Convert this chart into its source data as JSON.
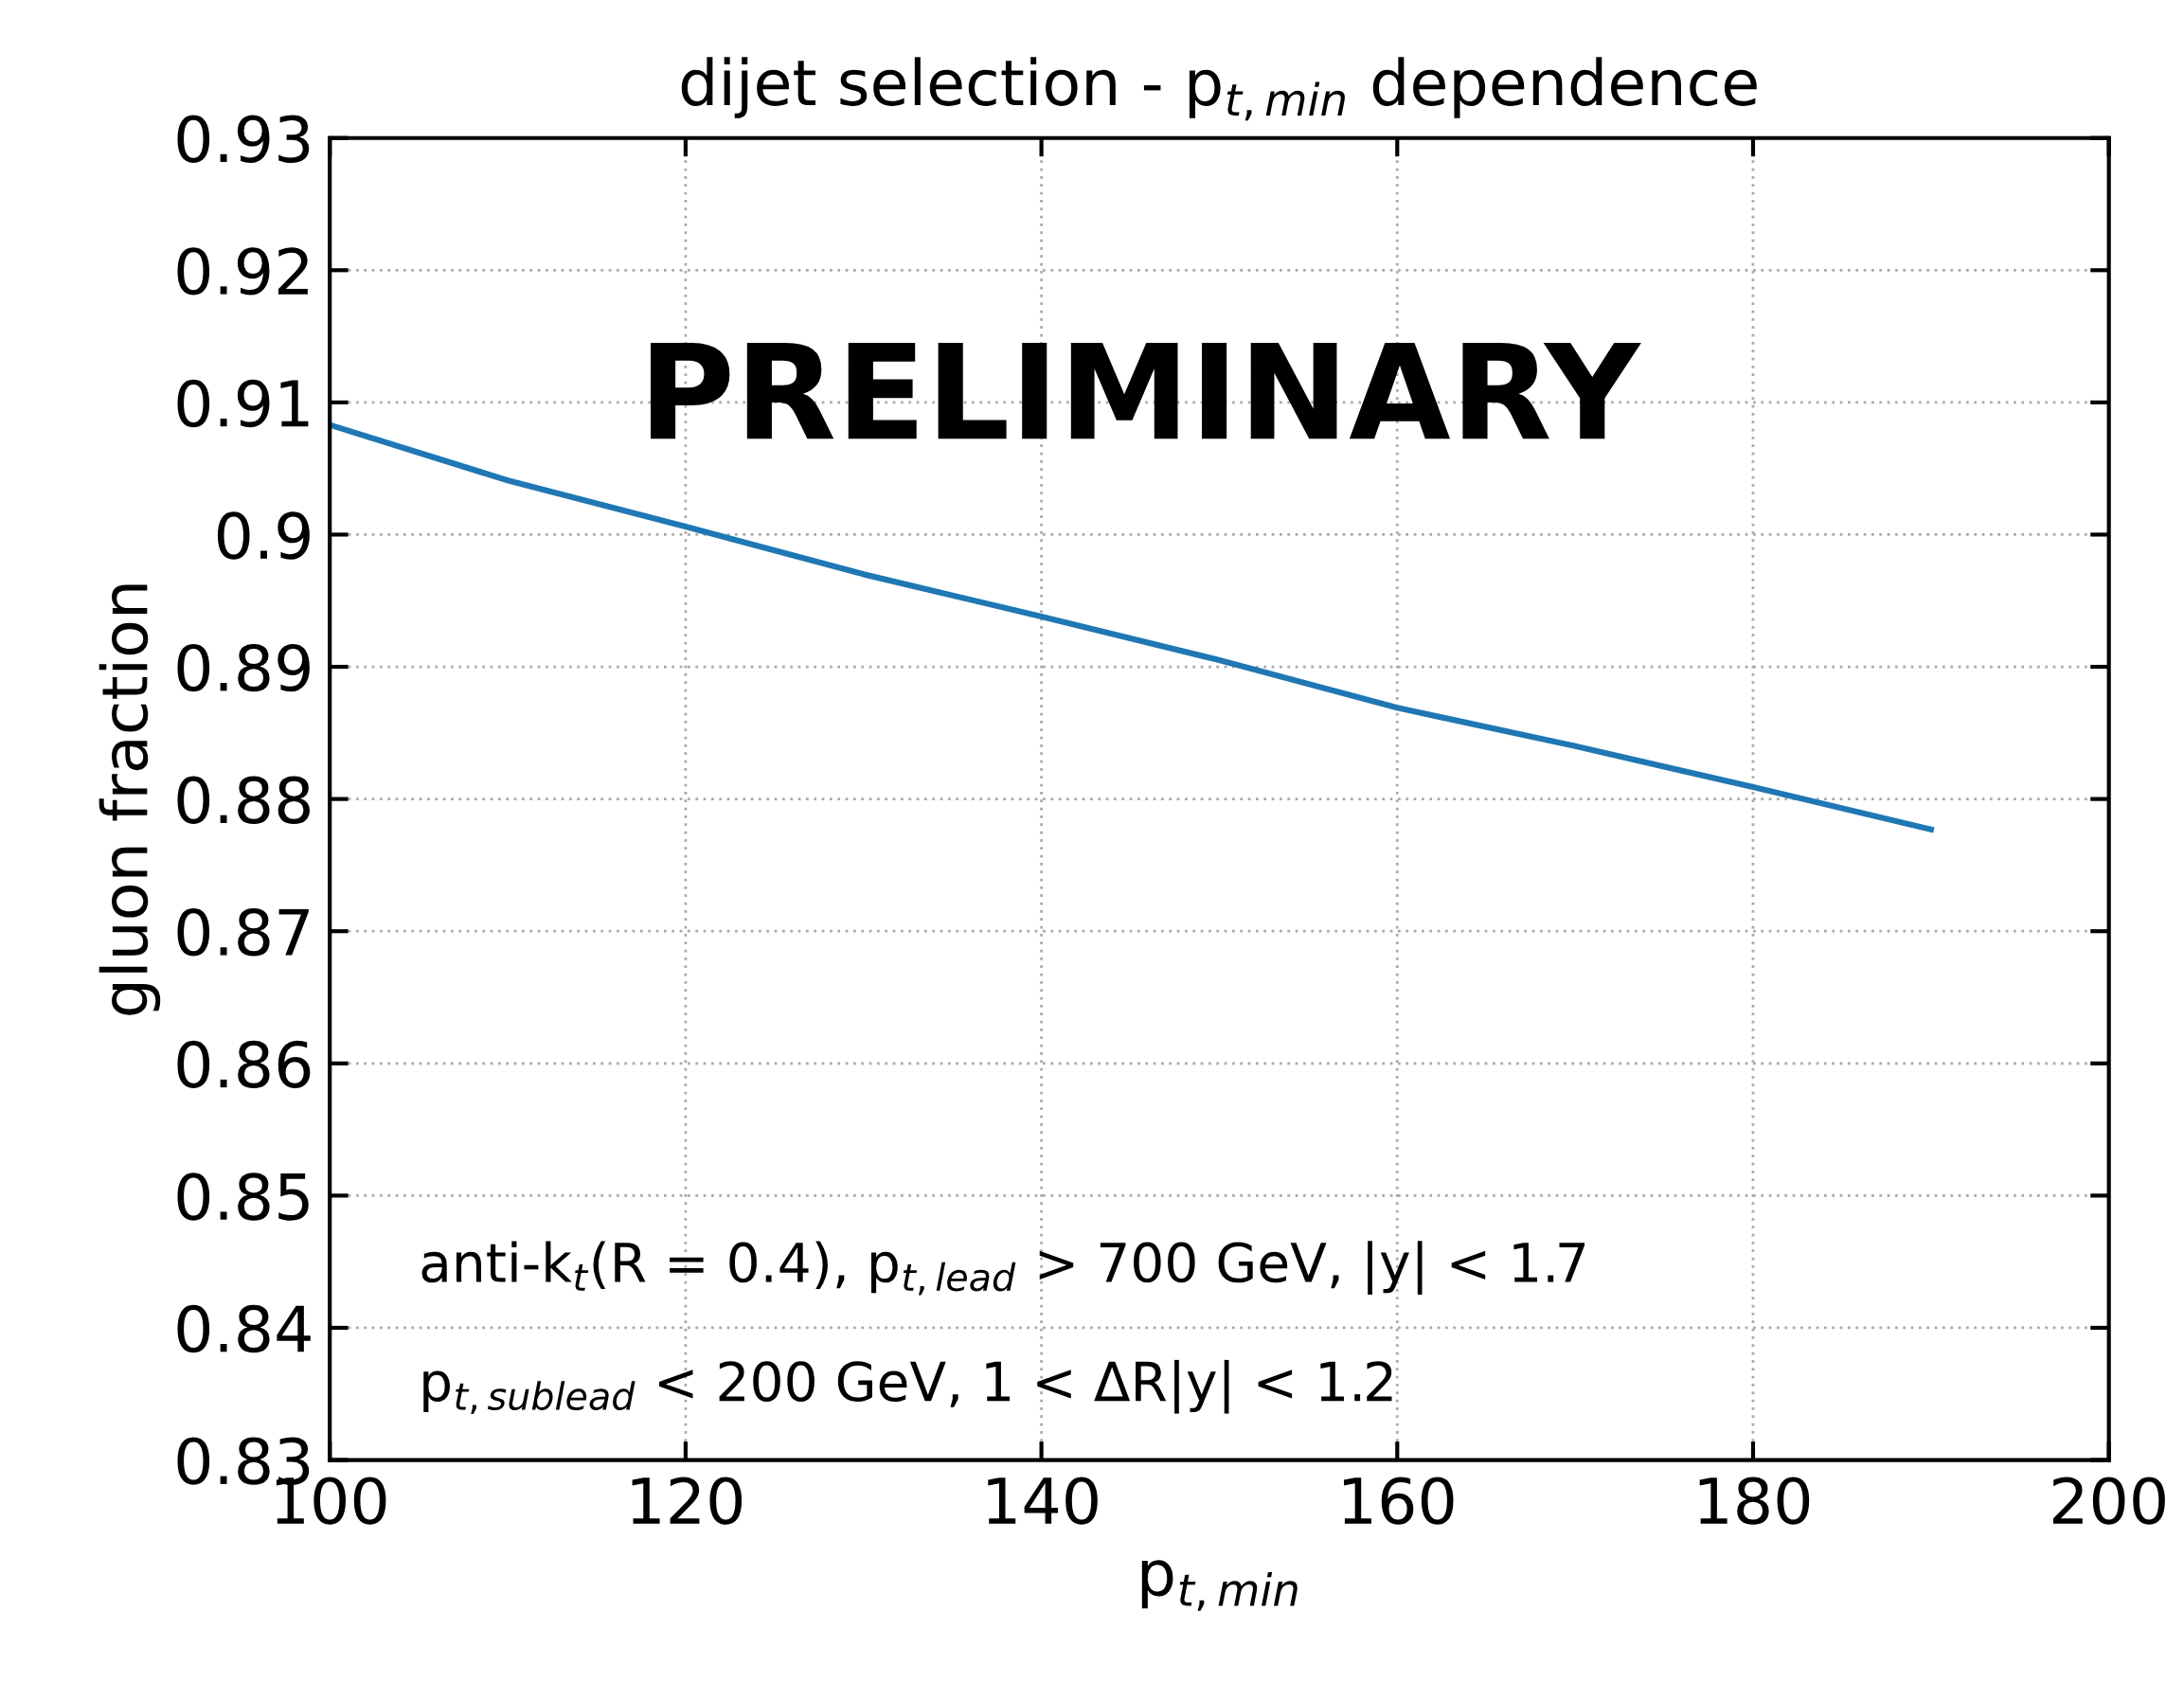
{
  "chart_data": {
    "type": "line",
    "title": "dijet selection - p$_{t,min}$ dependence",
    "xlabel": "p$_{t,min}$",
    "ylabel": "gluon fraction",
    "x": [
      100,
      110,
      120,
      130,
      140,
      150,
      160,
      170,
      180,
      190
    ],
    "series": [
      {
        "color": "#1f77b4",
        "values": [
          0.9083,
          0.9041,
          0.9006,
          0.897,
          0.8938,
          0.8905,
          0.8869,
          0.884,
          0.8809,
          0.8777
        ]
      }
    ],
    "xlim": [
      100,
      200
    ],
    "xticks": [
      100,
      120,
      140,
      160,
      180,
      200
    ],
    "ylim": [
      0.83,
      0.93
    ],
    "yticks": [
      0.83,
      0.84,
      0.85,
      0.86,
      0.87,
      0.88,
      0.89,
      {
        "value": 0.9,
        "label": "0.9"
      },
      0.91,
      0.92,
      0.93
    ],
    "grid": true,
    "line_style": "solid",
    "marker": "none",
    "annotations": [
      "PRELIMINARY",
      "anti-k$_{t}$(R = 0.4), p$_{t,lead}$ > 700 GeV, |y| < 1.7",
      "p$_{t,sublead}$ < 200 GeV, 1 < ΔR|y| < 1.2"
    ]
  }
}
